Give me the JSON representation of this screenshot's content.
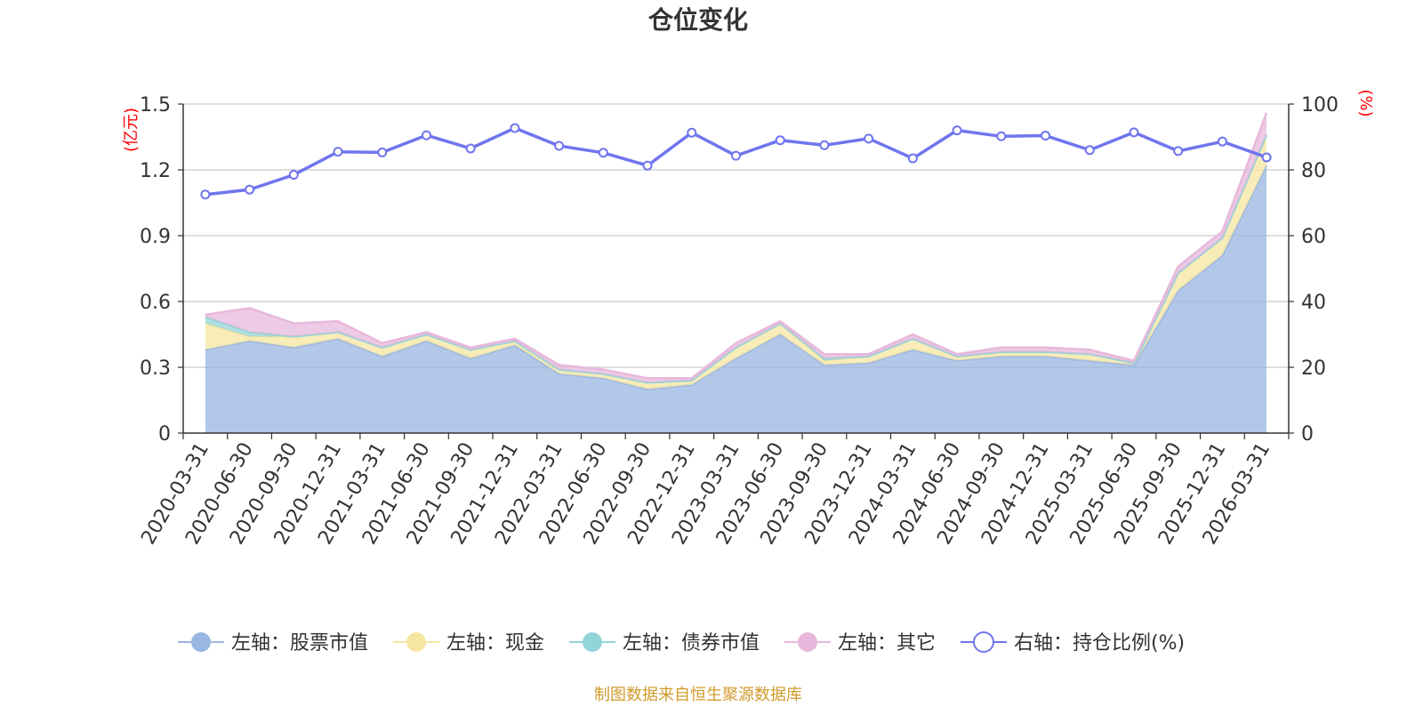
{
  "chart_data": {
    "type": "area",
    "title": "仓位变化",
    "left_axis_label": "(亿元)",
    "right_axis_label": "(%)",
    "left_ylim": [
      0,
      1.5
    ],
    "left_ticks": [
      "0",
      "0.3",
      "0.6",
      "0.9",
      "1.2",
      "1.5"
    ],
    "right_ylim": [
      0,
      100
    ],
    "right_ticks": [
      "0",
      "20",
      "40",
      "60",
      "80",
      "100"
    ],
    "grid": true,
    "legend_position": "bottom",
    "x": [
      "2020-03-31",
      "2020-06-30",
      "2020-09-30",
      "2020-12-31",
      "2021-03-31",
      "2021-06-30",
      "2021-09-30",
      "2021-12-31",
      "2022-03-31",
      "2022-06-30",
      "2022-09-30",
      "2022-12-31",
      "2023-03-31",
      "2023-06-30",
      "2023-09-30",
      "2023-12-31",
      "2024-03-31",
      "2024-06-30",
      "2024-09-30",
      "2024-12-31",
      "2025-03-31",
      "2025-06-30",
      "2025-09-30",
      "2025-12-31",
      "2026-03-31"
    ],
    "series": [
      {
        "name": "左轴：股票市值",
        "axis": "left",
        "kind": "stacked-area",
        "color": "#9ab6e2",
        "values": [
          0.38,
          0.42,
          0.39,
          0.43,
          0.35,
          0.42,
          0.34,
          0.4,
          0.27,
          0.25,
          0.2,
          0.22,
          0.34,
          0.45,
          0.31,
          0.32,
          0.38,
          0.33,
          0.35,
          0.35,
          0.33,
          0.31,
          0.65,
          0.81,
          1.22
        ]
      },
      {
        "name": "左轴：现金",
        "axis": "left",
        "kind": "stacked-area",
        "color": "#f6e6a2",
        "values": [
          0.12,
          0.02,
          0.05,
          0.03,
          0.04,
          0.03,
          0.04,
          0.02,
          0.02,
          0.02,
          0.03,
          0.02,
          0.05,
          0.05,
          0.02,
          0.03,
          0.05,
          0.02,
          0.02,
          0.02,
          0.03,
          0.01,
          0.08,
          0.08,
          0.14
        ]
      },
      {
        "name": "左轴：债券市值",
        "axis": "left",
        "kind": "stacked-area",
        "color": "#93d4d8",
        "values": [
          0.03,
          0.02,
          0,
          0,
          0,
          0,
          0,
          0,
          0,
          0,
          0,
          0,
          0,
          0,
          0.01,
          0,
          0,
          0,
          0,
          0,
          0,
          0,
          0,
          0,
          0
        ]
      },
      {
        "name": "左轴：其它",
        "axis": "left",
        "kind": "stacked-area",
        "color": "#e7b8dc",
        "values": [
          0.01,
          0.11,
          0.06,
          0.05,
          0.02,
          0.01,
          0.01,
          0.01,
          0.02,
          0.02,
          0.02,
          0.01,
          0.02,
          0.01,
          0.02,
          0.01,
          0.02,
          0.01,
          0.02,
          0.02,
          0.02,
          0.01,
          0.03,
          0.03,
          0.1
        ]
      },
      {
        "name": "右轴：持仓比例(%)",
        "axis": "right",
        "kind": "line",
        "color": "#7075ee",
        "values": [
          72.5,
          74,
          78.5,
          85.5,
          85.3,
          90.5,
          86.5,
          92.7,
          87.3,
          85.2,
          81.3,
          91.3,
          84.3,
          89,
          87.5,
          89.5,
          83.5,
          92,
          90.2,
          90.4,
          86,
          91.4,
          85.7,
          88.6,
          83.8
        ]
      }
    ],
    "footer": "制图数据来自恒生聚源数据库"
  }
}
